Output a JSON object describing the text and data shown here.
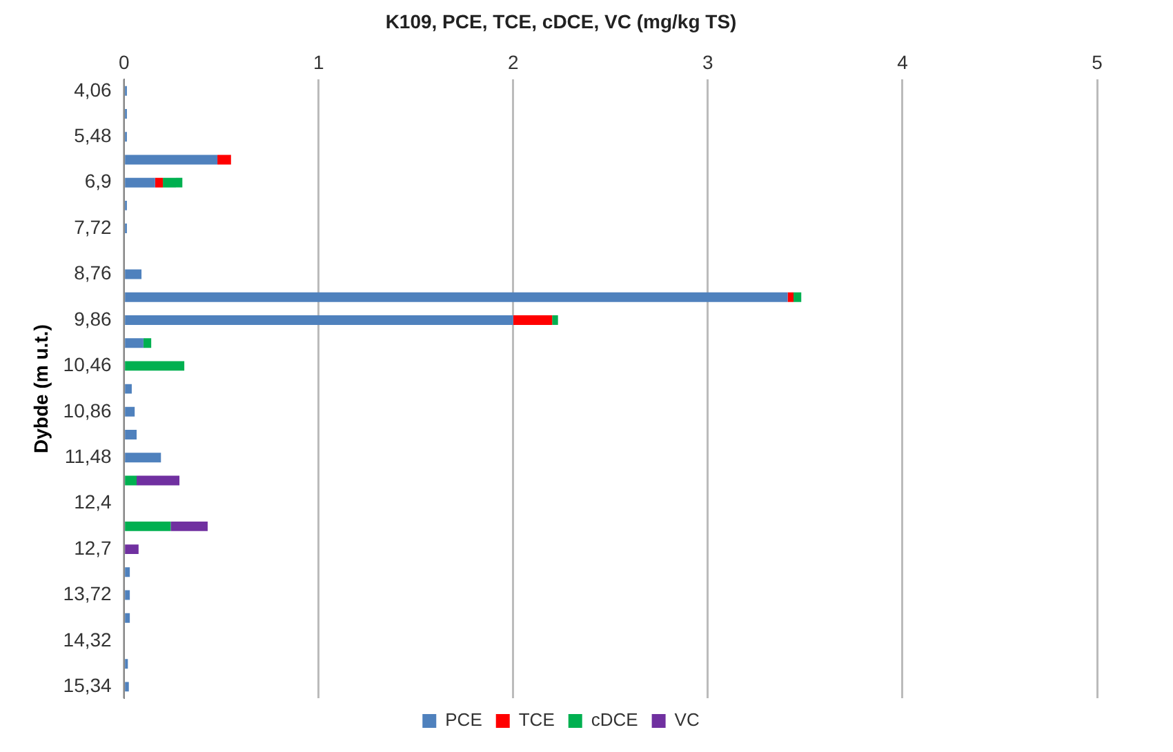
{
  "chart_data": {
    "type": "bar",
    "orientation": "horizontal",
    "stacked": true,
    "title": "K109, PCE, TCE, cDCE, VC (mg/kg TS)",
    "ylabel": "Dybde (m u.t.)",
    "categories": [
      "4,06",
      null,
      "5,48",
      null,
      "6,9",
      null,
      "7,72",
      null,
      "8,76",
      null,
      "9,86",
      null,
      "10,46",
      null,
      "10,86",
      null,
      "11,48",
      null,
      "12,4",
      null,
      "12,7",
      null,
      "13,72",
      null,
      "14,32",
      null,
      "15,34"
    ],
    "series": [
      {
        "name": "PCE",
        "color": "#4f81bd",
        "values": [
          0.015,
          0.015,
          0.015,
          0.48,
          0.16,
          0.015,
          0.015,
          null,
          0.09,
          3.41,
          2.0,
          0.1,
          null,
          0.04,
          0.055,
          0.065,
          0.19,
          null,
          null,
          null,
          null,
          0.03,
          0.03,
          0.03,
          null,
          0.02,
          0.025
        ]
      },
      {
        "name": "TCE",
        "color": "#ff0000",
        "values": [
          null,
          null,
          null,
          0.07,
          0.04,
          null,
          null,
          null,
          null,
          0.03,
          0.2,
          null,
          null,
          null,
          null,
          null,
          null,
          null,
          null,
          null,
          null,
          null,
          null,
          null,
          null,
          null,
          null
        ]
      },
      {
        "name": "cDCE",
        "color": "#00b050",
        "values": [
          null,
          null,
          null,
          null,
          0.1,
          null,
          null,
          null,
          null,
          0.04,
          0.03,
          0.04,
          0.31,
          null,
          null,
          null,
          null,
          0.065,
          null,
          0.24,
          null,
          null,
          null,
          null,
          null,
          null,
          null
        ]
      },
      {
        "name": "VC",
        "color": "#7030a0",
        "values": [
          null,
          null,
          null,
          null,
          null,
          null,
          null,
          null,
          null,
          null,
          null,
          null,
          null,
          null,
          null,
          null,
          null,
          0.22,
          null,
          0.19,
          0.075,
          null,
          null,
          null,
          null,
          null,
          null
        ]
      }
    ],
    "xlim": [
      0,
      5
    ],
    "xticks": [
      0,
      1,
      2,
      3,
      4,
      5
    ],
    "grid": "x",
    "legend": "bottom"
  }
}
